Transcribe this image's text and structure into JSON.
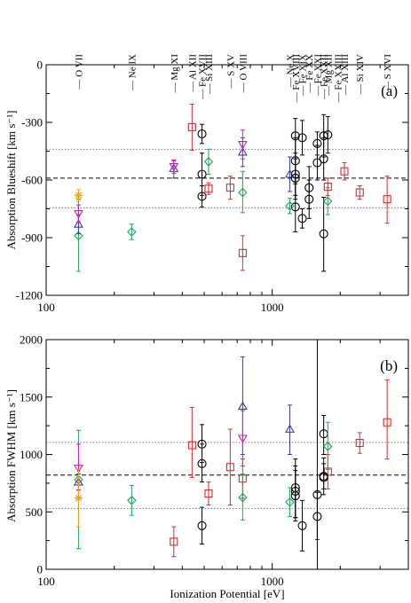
{
  "chart_data": [
    {
      "type": "scatter",
      "panel_label": "(a)",
      "ylabel": "Absorption Blueshift [km s⁻¹]",
      "xlabel": "",
      "xscale": "log",
      "xlim": [
        100,
        4000
      ],
      "ylim": [
        -1200,
        0
      ],
      "x_ticks": [
        "100",
        "1000"
      ],
      "y_ticks": [
        "0",
        "-300",
        "-600",
        "-900",
        "-1200"
      ],
      "reference_lines": [
        {
          "y": -590,
          "style": "dashed"
        },
        {
          "y": -440,
          "style": "dotted"
        },
        {
          "y": -745,
          "style": "dotted"
        }
      ],
      "top_labels": [
        {
          "text": "O VII",
          "x": 139
        },
        {
          "text": "Ne IX",
          "x": 239
        },
        {
          "text": "Mg XI",
          "x": 367
        },
        {
          "text": "Al XII",
          "x": 442
        },
        {
          "text": "Fe XVII",
          "x": 489
        },
        {
          "text": "Si XIII",
          "x": 523
        },
        {
          "text": "S XV",
          "x": 652
        },
        {
          "text": "O VIII",
          "x": 740
        },
        {
          "text": "Ne X",
          "x": 1196
        },
        {
          "text": "Fe XVIII",
          "x": 1266
        },
        {
          "text": "Fe XIX",
          "x": 1358
        },
        {
          "text": "Fe XX",
          "x": 1456
        },
        {
          "text": "Fe XXI",
          "x": 1582
        },
        {
          "text": "Fe XXII",
          "x": 1689
        },
        {
          "text": "Mg XII",
          "x": 1762
        },
        {
          "text": "Fe XXIII",
          "x": 1950
        },
        {
          "text": "Al XIII",
          "x": 2086
        },
        {
          "text": "Si XIV",
          "x": 2438
        },
        {
          "text": "S XVI",
          "x": 3224
        }
      ],
      "series": [
        {
          "marker": "square",
          "color": "#dd2a2a",
          "points": [
            {
              "x": 442,
              "y": -325,
              "lo": -445,
              "hi": -205
            },
            {
              "x": 523,
              "y": -645,
              "lo": -675,
              "hi": -615
            },
            {
              "x": 652,
              "y": -640,
              "lo": -700,
              "hi": -580
            },
            {
              "x": 740,
              "y": -980,
              "lo": -1070,
              "hi": -890
            },
            {
              "x": 1762,
              "y": -635,
              "lo": -680,
              "hi": -590
            },
            {
              "x": 2086,
              "y": -555,
              "lo": -600,
              "hi": -510
            },
            {
              "x": 2438,
              "y": -665,
              "lo": -700,
              "hi": -630
            },
            {
              "x": 3224,
              "y": -700,
              "lo": -825,
              "hi": -580
            }
          ]
        },
        {
          "marker": "circle",
          "color": "#000000",
          "points": [
            {
              "x": 489,
              "y": -360,
              "lo": -410,
              "hi": -310
            },
            {
              "x": 489,
              "y": -570,
              "lo": -680,
              "hi": -460
            },
            {
              "x": 489,
              "y": -685,
              "lo": -740,
              "hi": -630
            },
            {
              "x": 1266,
              "y": -370,
              "lo": -490,
              "hi": -280
            },
            {
              "x": 1266,
              "y": -500,
              "lo": -620,
              "hi": -380
            },
            {
              "x": 1266,
              "y": -570,
              "lo": -680,
              "hi": -460
            },
            {
              "x": 1266,
              "y": -590,
              "lo": -700,
              "hi": -480
            },
            {
              "x": 1266,
              "y": -740,
              "lo": -870,
              "hi": -610
            },
            {
              "x": 1358,
              "y": -380,
              "lo": -470,
              "hi": -290
            },
            {
              "x": 1358,
              "y": -800,
              "lo": -850,
              "hi": -750
            },
            {
              "x": 1456,
              "y": -640,
              "lo": -750,
              "hi": -530
            },
            {
              "x": 1456,
              "y": -700,
              "lo": -800,
              "hi": -600
            },
            {
              "x": 1582,
              "y": -410,
              "lo": -470,
              "hi": -350
            },
            {
              "x": 1582,
              "y": -510,
              "lo": -600,
              "hi": -420
            },
            {
              "x": 1689,
              "y": -370,
              "lo": -480,
              "hi": -260
            },
            {
              "x": 1689,
              "y": -490,
              "lo": -600,
              "hi": -380
            },
            {
              "x": 1689,
              "y": -880,
              "lo": -1075,
              "hi": -690
            },
            {
              "x": 1762,
              "y": -365,
              "lo": -460,
              "hi": -270
            }
          ]
        },
        {
          "marker": "diamond",
          "color": "#1aa35a",
          "points": [
            {
              "x": 139,
              "y": -890,
              "lo": -1075,
              "hi": -700
            },
            {
              "x": 239,
              "y": -870,
              "lo": -910,
              "hi": -830
            },
            {
              "x": 523,
              "y": -505,
              "lo": -570,
              "hi": -440
            },
            {
              "x": 740,
              "y": -665,
              "lo": -770,
              "hi": -555
            },
            {
              "x": 1196,
              "y": -735,
              "lo": -775,
              "hi": -695
            },
            {
              "x": 1762,
              "y": -710,
              "lo": -780,
              "hi": -640
            }
          ]
        },
        {
          "marker": "triangle-up",
          "color": "#3a3aa8",
          "points": [
            {
              "x": 139,
              "y": -830,
              "lo": -880,
              "hi": -780
            },
            {
              "x": 367,
              "y": -540,
              "lo": -590,
              "hi": -500
            },
            {
              "x": 740,
              "y": -455,
              "lo": -530,
              "hi": -380
            },
            {
              "x": 1196,
              "y": -570,
              "lo": -660,
              "hi": -480
            }
          ]
        },
        {
          "marker": "triangle-down",
          "color": "#d419b5",
          "points": [
            {
              "x": 139,
              "y": -775,
              "lo": -820,
              "hi": -730
            },
            {
              "x": 367,
              "y": -530,
              "lo": -565,
              "hi": -495
            },
            {
              "x": 740,
              "y": -415,
              "lo": -490,
              "hi": -340
            }
          ]
        },
        {
          "marker": "star",
          "color": "#f0a020",
          "points": [
            {
              "x": 139,
              "y": -680,
              "lo": -710,
              "hi": -650
            }
          ]
        }
      ]
    },
    {
      "type": "scatter",
      "panel_label": "(b)",
      "ylabel": "Absorption FWHM [km s⁻¹]",
      "xlabel": "Ionization Potential [eV]",
      "xscale": "log",
      "xlim": [
        100,
        4000
      ],
      "ylim": [
        0,
        2000
      ],
      "x_ticks": [
        "100",
        "1000"
      ],
      "y_ticks": [
        "0",
        "500",
        "1000",
        "1500",
        "2000"
      ],
      "reference_lines": [
        {
          "y": 820,
          "style": "dashed"
        },
        {
          "y": 1105,
          "style": "dotted"
        },
        {
          "y": 530,
          "style": "dotted"
        }
      ],
      "series": [
        {
          "marker": "square",
          "color": "#dd2a2a",
          "points": [
            {
              "x": 367,
              "y": 240,
              "lo": 110,
              "hi": 370
            },
            {
              "x": 442,
              "y": 1080,
              "lo": 800,
              "hi": 1410
            },
            {
              "x": 523,
              "y": 660,
              "lo": 560,
              "hi": 760
            },
            {
              "x": 652,
              "y": 890,
              "lo": 560,
              "hi": 1220
            },
            {
              "x": 740,
              "y": 790,
              "lo": 620,
              "hi": 960
            },
            {
              "x": 1762,
              "y": 850,
              "lo": 700,
              "hi": 1000
            },
            {
              "x": 2438,
              "y": 1100,
              "lo": 1010,
              "hi": 1190
            },
            {
              "x": 3224,
              "y": 1280,
              "lo": 960,
              "hi": 1650
            }
          ]
        },
        {
          "marker": "circle",
          "color": "#000000",
          "points": [
            {
              "x": 489,
              "y": 1090,
              "lo": 930,
              "hi": 1260
            },
            {
              "x": 489,
              "y": 920,
              "lo": 760,
              "hi": 1090
            },
            {
              "x": 489,
              "y": 380,
              "lo": 220,
              "hi": 540
            },
            {
              "x": 1266,
              "y": 710,
              "lo": 450,
              "hi": 960
            },
            {
              "x": 1266,
              "y": 680,
              "lo": 450,
              "hi": 900
            },
            {
              "x": 1266,
              "y": 640,
              "lo": 420,
              "hi": 860
            },
            {
              "x": 1358,
              "y": 380,
              "lo": 160,
              "hi": 600
            },
            {
              "x": 1582,
              "y": 650,
              "lo": 0,
              "hi": 2000
            },
            {
              "x": 1582,
              "y": 460,
              "lo": 260,
              "hi": 670
            },
            {
              "x": 1689,
              "y": 810,
              "lo": 650,
              "hi": 970
            },
            {
              "x": 1689,
              "y": 800,
              "lo": 700,
              "hi": 920
            },
            {
              "x": 1689,
              "y": 1180,
              "lo": 1000,
              "hi": 1340
            }
          ]
        },
        {
          "marker": "diamond",
          "color": "#1aa35a",
          "points": [
            {
              "x": 139,
              "y": 780,
              "lo": 180,
              "hi": 1210
            },
            {
              "x": 239,
              "y": 600,
              "lo": 470,
              "hi": 730
            },
            {
              "x": 740,
              "y": 625,
              "lo": 430,
              "hi": 830
            },
            {
              "x": 1196,
              "y": 585,
              "lo": 460,
              "hi": 710
            },
            {
              "x": 1762,
              "y": 1070,
              "lo": 870,
              "hi": 1280
            }
          ]
        },
        {
          "marker": "triangle-up",
          "color": "#3a3aa8",
          "points": [
            {
              "x": 139,
              "y": 760,
              "lo": 690,
              "hi": 830
            },
            {
              "x": 740,
              "y": 1420,
              "lo": 1000,
              "hi": 1850
            },
            {
              "x": 1196,
              "y": 1220,
              "lo": 1000,
              "hi": 1430
            }
          ]
        },
        {
          "marker": "triangle-down",
          "color": "#d419b5",
          "points": [
            {
              "x": 139,
              "y": 880,
              "lo": 690,
              "hi": 1090
            },
            {
              "x": 740,
              "y": 1140,
              "lo": 900,
              "hi": 1380
            }
          ]
        },
        {
          "marker": "star",
          "color": "#f0a020",
          "points": [
            {
              "x": 139,
              "y": 620,
              "lo": 370,
              "hi": 870
            }
          ]
        }
      ]
    }
  ]
}
